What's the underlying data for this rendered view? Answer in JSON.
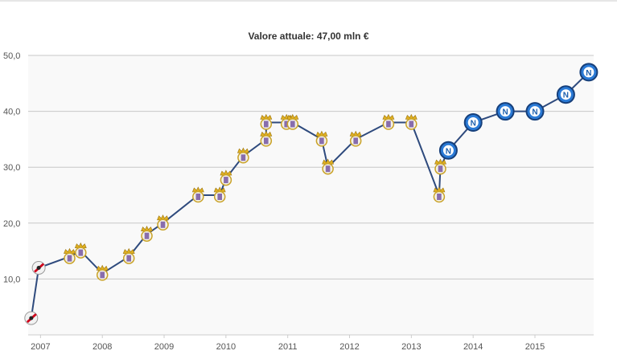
{
  "chart_data": {
    "type": "line",
    "title": "Valore attuale: 47,00 mln €",
    "xlabel": "",
    "ylabel": "",
    "x_ticks": [
      "2007",
      "2008",
      "2009",
      "2010",
      "2011",
      "2012",
      "2013",
      "2014",
      "2015"
    ],
    "y_ticks": [
      "10,0",
      "20,0",
      "30,0",
      "40,0",
      "50,0"
    ],
    "ylim": [
      0,
      50
    ],
    "xlim": [
      2006.8,
      2015.95
    ],
    "grid": true,
    "line_color": "#2e4a7d",
    "background": "#f9f9f9",
    "series": [
      {
        "club": "River Plate",
        "marker": "river-plate-badge-icon",
        "points": [
          {
            "x": 2006.85,
            "y": 3
          },
          {
            "x": 2006.97,
            "y": 12
          }
        ]
      },
      {
        "club": "Real Madrid",
        "marker": "real-madrid-badge-icon",
        "points": [
          {
            "x": 2007.47,
            "y": 14
          },
          {
            "x": 2007.65,
            "y": 15
          },
          {
            "x": 2008.0,
            "y": 11
          },
          {
            "x": 2008.43,
            "y": 14
          },
          {
            "x": 2008.72,
            "y": 18
          },
          {
            "x": 2008.98,
            "y": 20
          },
          {
            "x": 2009.55,
            "y": 25
          },
          {
            "x": 2009.9,
            "y": 25
          },
          {
            "x": 2010.0,
            "y": 28
          },
          {
            "x": 2010.28,
            "y": 32
          },
          {
            "x": 2010.65,
            "y": 35
          },
          {
            "x": 2010.65,
            "y": 38
          },
          {
            "x": 2010.98,
            "y": 38
          },
          {
            "x": 2011.08,
            "y": 38
          },
          {
            "x": 2011.55,
            "y": 35
          },
          {
            "x": 2011.65,
            "y": 30
          },
          {
            "x": 2012.1,
            "y": 35
          },
          {
            "x": 2012.63,
            "y": 38
          },
          {
            "x": 2013.0,
            "y": 38
          },
          {
            "x": 2013.45,
            "y": 25
          },
          {
            "x": 2013.47,
            "y": 30
          }
        ]
      },
      {
        "club": "Napoli",
        "marker": "napoli-badge-icon",
        "points": [
          {
            "x": 2013.6,
            "y": 33
          },
          {
            "x": 2014.0,
            "y": 38
          },
          {
            "x": 2014.52,
            "y": 40
          },
          {
            "x": 2015.0,
            "y": 40
          },
          {
            "x": 2015.5,
            "y": 43
          },
          {
            "x": 2015.87,
            "y": 47
          }
        ]
      }
    ]
  }
}
